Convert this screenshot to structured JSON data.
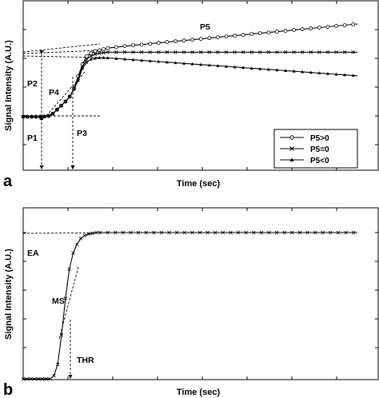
{
  "chart_data": [
    {
      "type": "line",
      "panel_label": "a",
      "xlabel": "Time (sec)",
      "ylabel": "Signal Intensity (A.U.)",
      "legend": {
        "placement": "lower-right"
      },
      "series": [
        {
          "name": "P5>0",
          "marker": "circle",
          "x": [
            0,
            5,
            10,
            15,
            20,
            25,
            30,
            35,
            40,
            45,
            50,
            55,
            60,
            65,
            70,
            75,
            80,
            85,
            90,
            95,
            100,
            105,
            110,
            115,
            120,
            125,
            130,
            135,
            140,
            145,
            150,
            155,
            160,
            165,
            170,
            175,
            180,
            185,
            190,
            195,
            200,
            205,
            210,
            215,
            220,
            225,
            230,
            235,
            240,
            245,
            250,
            255,
            260,
            265,
            270,
            275,
            280,
            285,
            290,
            295,
            300,
            305,
            310,
            315,
            320,
            325,
            330,
            335,
            340,
            345,
            350,
            355,
            360,
            365,
            370,
            375,
            380,
            385,
            390,
            395
          ],
          "y": [
            0,
            0,
            0,
            0,
            0,
            0.2,
            0.8,
            3,
            7,
            11,
            15,
            20,
            28,
            40,
            52,
            60,
            63,
            65,
            66,
            67,
            68,
            68.5,
            69,
            69.5,
            70,
            70.4,
            70.8,
            71.2,
            71.6,
            72,
            72.4,
            72.8,
            73.2,
            73.6,
            74,
            74.4,
            74.8,
            75.2,
            75.6,
            76,
            76.4,
            76.8,
            77.2,
            77.6,
            78,
            78.4,
            78.8,
            79.2,
            79.6,
            80,
            80.4,
            80.8,
            81.2,
            81.6,
            82,
            82.4,
            82.8,
            83.2,
            83.6,
            84,
            84.4,
            84.8,
            85.2,
            85.6,
            86,
            86.4,
            86.8,
            87.2,
            87.6,
            88,
            88.4,
            88.8,
            89.2,
            89.6,
            90,
            90.4,
            90.8,
            91.2,
            91.6,
            92
          ]
        },
        {
          "name": "P5=0",
          "marker": "x",
          "x": [
            0,
            5,
            10,
            15,
            20,
            25,
            30,
            35,
            40,
            45,
            50,
            55,
            60,
            65,
            70,
            75,
            80,
            85,
            90,
            95,
            100,
            105,
            110,
            115,
            120,
            125,
            130,
            135,
            140,
            145,
            150,
            155,
            160,
            165,
            170,
            175,
            180,
            185,
            190,
            195,
            200,
            205,
            210,
            215,
            220,
            225,
            230,
            235,
            240,
            245,
            250,
            255,
            260,
            265,
            270,
            275,
            280,
            285,
            290,
            295,
            300,
            305,
            310,
            315,
            320,
            325,
            330,
            335,
            340,
            345,
            350,
            355,
            360,
            365,
            370,
            375,
            380,
            385,
            390,
            395
          ],
          "y": [
            0,
            0,
            0,
            0,
            0,
            0.2,
            0.8,
            3,
            7,
            11,
            15,
            20,
            28,
            38,
            50,
            57,
            60,
            62,
            63,
            63.5,
            64,
            64,
            64,
            64,
            64,
            64,
            64,
            64,
            64,
            64,
            64,
            64,
            64,
            64,
            64,
            64,
            64,
            64,
            64,
            64,
            64,
            64,
            64,
            64,
            64,
            64,
            64,
            64,
            64,
            64,
            64,
            64,
            64,
            64,
            64,
            64,
            64,
            64,
            64,
            64,
            64,
            64,
            64,
            64,
            64,
            64,
            64,
            64,
            64,
            64,
            64,
            64,
            64,
            64,
            64,
            64,
            64,
            64,
            64,
            64
          ]
        },
        {
          "name": "P5<0",
          "marker": "triangle",
          "x": [
            0,
            5,
            10,
            15,
            20,
            25,
            30,
            35,
            40,
            45,
            50,
            55,
            60,
            65,
            70,
            75,
            80,
            85,
            90,
            95,
            100,
            105,
            110,
            115,
            120,
            125,
            130,
            135,
            140,
            145,
            150,
            155,
            160,
            165,
            170,
            175,
            180,
            185,
            190,
            195,
            200,
            205,
            210,
            215,
            220,
            225,
            230,
            235,
            240,
            245,
            250,
            255,
            260,
            265,
            270,
            275,
            280,
            285,
            290,
            295,
            300,
            305,
            310,
            315,
            320,
            325,
            330,
            335,
            340,
            345,
            350,
            355,
            360,
            365,
            370,
            375,
            380,
            385,
            390,
            395
          ],
          "y": [
            0,
            0,
            0,
            0,
            0,
            0.2,
            0.8,
            3,
            7,
            11,
            15,
            20,
            27,
            36,
            48,
            54,
            57,
            58,
            58.5,
            58.5,
            58.3,
            58,
            57.7,
            57.4,
            57.1,
            56.8,
            56.5,
            56.2,
            55.9,
            55.6,
            55.3,
            55,
            54.7,
            54.4,
            54.1,
            53.8,
            53.5,
            53.2,
            52.9,
            52.6,
            52.3,
            52,
            51.7,
            51.4,
            51.1,
            50.8,
            50.5,
            50.2,
            49.9,
            49.6,
            49.3,
            49,
            48.7,
            48.4,
            48.1,
            47.8,
            47.5,
            47.2,
            46.9,
            46.6,
            46.3,
            46,
            45.7,
            45.4,
            45.1,
            44.8,
            44.5,
            44.2,
            43.9,
            43.6,
            43.3,
            43,
            42.7,
            42.4,
            42.1,
            41.8,
            41.5,
            41.2,
            40.9,
            40.6
          ]
        }
      ],
      "annotations": [
        {
          "text": "P1"
        },
        {
          "text": "P2"
        },
        {
          "text": "P3"
        },
        {
          "text": "P4"
        },
        {
          "text": "P5"
        }
      ]
    },
    {
      "type": "line",
      "panel_label": "b",
      "xlabel": "Time (sec)",
      "ylabel": "Signal Intensity (A.U.)",
      "series": [
        {
          "marker": "x",
          "x": [
            0,
            5,
            10,
            15,
            20,
            25,
            30,
            35,
            40,
            45,
            50,
            55,
            60,
            65,
            70,
            75,
            80,
            85,
            90,
            95,
            100,
            105,
            110,
            115,
            120,
            125,
            130,
            135,
            140,
            145,
            150,
            155,
            160,
            165,
            170,
            175,
            180,
            185,
            190,
            195,
            200,
            205,
            210,
            215,
            220,
            225,
            230,
            235,
            240,
            245,
            250,
            255,
            260,
            265,
            270,
            275,
            280,
            285,
            290,
            295,
            300,
            305,
            310,
            315,
            320,
            325,
            330,
            335,
            340,
            345,
            350,
            355,
            360,
            365,
            370,
            375,
            380,
            385,
            390,
            395,
            400,
            405,
            410,
            415,
            420,
            425,
            430,
            435
          ],
          "y": [
            0,
            0,
            0,
            0,
            0,
            0,
            0,
            0,
            2,
            10,
            30,
            55,
            75,
            86,
            92,
            96,
            98,
            99,
            99.5,
            100,
            100,
            100,
            100,
            100,
            100,
            100,
            100,
            100,
            100,
            100,
            100,
            100,
            100,
            100,
            100,
            100,
            100,
            100,
            100,
            100,
            100,
            100,
            100,
            100,
            100,
            100,
            100,
            100,
            100,
            100,
            100,
            100,
            100,
            100,
            100,
            100,
            100,
            100,
            100,
            100,
            100,
            100,
            100,
            100,
            100,
            100,
            100,
            100,
            100,
            100,
            100,
            100,
            100,
            100,
            100,
            100,
            100,
            100,
            100,
            100,
            100,
            100,
            100,
            100,
            100,
            100,
            100,
            100
          ]
        }
      ],
      "annotations": [
        {
          "text": "EA"
        },
        {
          "text": "MS"
        },
        {
          "text": "THR"
        }
      ]
    }
  ]
}
